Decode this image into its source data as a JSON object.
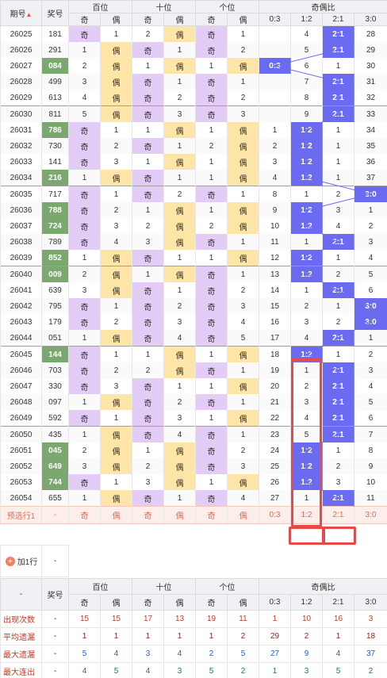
{
  "header": {
    "issue": "期号",
    "num": "奖号",
    "hundreds": "百位",
    "tens": "十位",
    "units": "个位",
    "ratio": "奇偶比",
    "sort_arrow": "▲▼",
    "sub": [
      "奇",
      "偶",
      "奇",
      "偶",
      "奇",
      "偶"
    ],
    "ratios": [
      "0:3",
      "1:2",
      "2:1",
      "3:0"
    ]
  },
  "rows": [
    [
      "26025",
      "181",
      "奇",
      "1",
      "2",
      "偶",
      "奇",
      "1",
      "4",
      "2:1",
      "28"
    ],
    [
      "26026",
      "291",
      "1",
      "偶",
      "奇",
      "1",
      "奇",
      "2",
      "5",
      "2:1",
      "29"
    ],
    [
      "26027",
      "084",
      "2",
      "偶",
      "1",
      "偶",
      "1",
      "偶",
      "0:3",
      "6",
      "1",
      "30"
    ],
    [
      "26028",
      "499",
      "3",
      "偶",
      "奇",
      "1",
      "奇",
      "1",
      "7",
      "2:1",
      "31"
    ],
    [
      "26029",
      "613",
      "4",
      "偶",
      "奇",
      "2",
      "奇",
      "2",
      "8",
      "2:1",
      "32"
    ],
    [
      "26030",
      "811",
      "5",
      "偶",
      "奇",
      "3",
      "奇",
      "3",
      "9",
      "2:1",
      "33"
    ],
    [
      "26031",
      "786",
      "奇",
      "1",
      "1",
      "偶",
      "1",
      "偶",
      "1",
      "1:2",
      "1",
      "34"
    ],
    [
      "26032",
      "730",
      "奇",
      "2",
      "奇",
      "1",
      "2",
      "偶",
      "2",
      "1:2",
      "1",
      "35"
    ],
    [
      "26033",
      "141",
      "奇",
      "3",
      "1",
      "偶",
      "1",
      "偶",
      "3",
      "1:2",
      "1",
      "36"
    ],
    [
      "26034",
      "216",
      "1",
      "偶",
      "奇",
      "1",
      "1",
      "偶",
      "4",
      "1:2",
      "1",
      "37"
    ],
    [
      "26035",
      "717",
      "奇",
      "1",
      "奇",
      "2",
      "奇",
      "1",
      "8",
      "1",
      "2",
      "3:0"
    ],
    [
      "26036",
      "788",
      "奇",
      "2",
      "1",
      "偶",
      "1",
      "偶",
      "9",
      "1:2",
      "3",
      "1"
    ],
    [
      "26037",
      "724",
      "奇",
      "3",
      "2",
      "偶",
      "2",
      "偶",
      "10",
      "1:2",
      "4",
      "2"
    ],
    [
      "26038",
      "789",
      "奇",
      "4",
      "3",
      "偶",
      "奇",
      "1",
      "11",
      "1",
      "2:1",
      "3"
    ],
    [
      "26039",
      "852",
      "1",
      "偶",
      "奇",
      "1",
      "1",
      "偶",
      "12",
      "1:2",
      "1",
      "4"
    ],
    [
      "26040",
      "009",
      "2",
      "偶",
      "1",
      "偶",
      "奇",
      "1",
      "13",
      "1:2",
      "2",
      "5"
    ],
    [
      "26041",
      "639",
      "3",
      "偶",
      "奇",
      "1",
      "奇",
      "2",
      "14",
      "1",
      "2:1",
      "6"
    ],
    [
      "26042",
      "795",
      "奇",
      "1",
      "奇",
      "2",
      "奇",
      "3",
      "15",
      "2",
      "1",
      "3:0"
    ],
    [
      "26043",
      "179",
      "奇",
      "2",
      "奇",
      "3",
      "奇",
      "4",
      "16",
      "3",
      "2",
      "3:0"
    ],
    [
      "26044",
      "051",
      "1",
      "偶",
      "奇",
      "4",
      "奇",
      "5",
      "17",
      "4",
      "2:1",
      "1"
    ],
    [
      "26045",
      "144",
      "奇",
      "1",
      "1",
      "偶",
      "1",
      "偶",
      "18",
      "1:2",
      "1",
      "2"
    ],
    [
      "26046",
      "703",
      "奇",
      "2",
      "2",
      "偶",
      "奇",
      "1",
      "19",
      "1",
      "2:1",
      "3"
    ],
    [
      "26047",
      "330",
      "奇",
      "3",
      "奇",
      "1",
      "1",
      "偶",
      "20",
      "2",
      "2:1",
      "4"
    ],
    [
      "26048",
      "097",
      "1",
      "偶",
      "奇",
      "2",
      "奇",
      "1",
      "21",
      "3",
      "2:1",
      "5"
    ],
    [
      "26049",
      "592",
      "奇",
      "1",
      "奇",
      "3",
      "1",
      "偶",
      "22",
      "4",
      "2:1",
      "6"
    ],
    [
      "26050",
      "435",
      "1",
      "偶",
      "奇",
      "4",
      "奇",
      "1",
      "23",
      "5",
      "2:1",
      "7"
    ],
    [
      "26051",
      "045",
      "2",
      "偶",
      "1",
      "偶",
      "奇",
      "2",
      "24",
      "1:2",
      "1",
      "8"
    ],
    [
      "26052",
      "649",
      "3",
      "偶",
      "2",
      "偶",
      "奇",
      "3",
      "25",
      "1:2",
      "2",
      "9"
    ],
    [
      "26053",
      "744",
      "奇",
      "1",
      "3",
      "偶",
      "1",
      "偶",
      "26",
      "1:2",
      "3",
      "10"
    ],
    [
      "26054",
      "655",
      "1",
      "偶",
      "奇",
      "1",
      "奇",
      "4",
      "27",
      "1",
      "2:1",
      "11"
    ]
  ],
  "prediction": {
    "label": "预选行1",
    "num": "-",
    "cells": [
      "奇",
      "偶",
      "奇",
      "偶",
      "奇",
      "偶",
      "0:3",
      "1:2",
      "2:1",
      "3:0"
    ]
  },
  "add_row": {
    "label": "加1行",
    "num": "-"
  },
  "footer": {
    "dash": "-",
    "num": "奖号",
    "stats": [
      {
        "label": "出现次数",
        "num": "-",
        "vals": [
          "15",
          "15",
          "17",
          "13",
          "19",
          "11",
          "1",
          "10",
          "16",
          "3"
        ]
      },
      {
        "label": "平均遗漏",
        "num": "-",
        "vals": [
          "1",
          "1",
          "1",
          "1",
          "1",
          "2",
          "29",
          "2",
          "1",
          "18"
        ]
      },
      {
        "label": "最大遗漏",
        "num": "-",
        "vals": [
          "5",
          "4",
          "3",
          "4",
          "2",
          "5",
          "27",
          "9",
          "4",
          "37"
        ]
      },
      {
        "label": "最大连出",
        "num": "-",
        "vals": [
          "4",
          "5",
          "4",
          "3",
          "5",
          "2",
          "1",
          "3",
          "5",
          "2"
        ]
      }
    ]
  },
  "colors": {
    "accent_purple": "#6b6bf2",
    "odd_bg": "#e3cdf7",
    "even_bg": "#ffe6a8",
    "green_num": "#7aa86e",
    "highlight_red": "#e84a4a"
  }
}
